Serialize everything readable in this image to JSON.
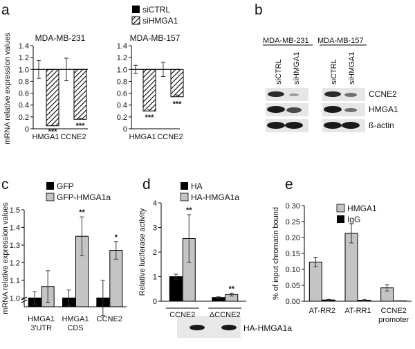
{
  "panel_letters": [
    "a",
    "b",
    "c",
    "d",
    "e"
  ],
  "colors": {
    "black": "#000000",
    "gray": "#c4c4c4",
    "hatch": "#000000",
    "error": "#444444",
    "blot_bg": "#e6e6e6",
    "blot_band": "#1a1a1a"
  },
  "panel_a": {
    "legend": [
      "siCTRL",
      "siHMGA1"
    ],
    "ylabel": "mRNA relative expression values"
  },
  "panel_b": {
    "cell_lines": [
      "MDA-MB-231",
      "MDA-MB-157"
    ],
    "lanes": [
      "siCTRL",
      "siHMGA1",
      "siCTRL",
      "siHMGA1"
    ],
    "proteins": [
      "CCNE2",
      "HMGA1",
      "ß-actin"
    ]
  },
  "panel_c": {
    "legend": [
      "GFP",
      "GFP-HMGA1a"
    ]
  },
  "panel_d": {
    "legend": [
      "HA",
      "HA-HMGA1a"
    ],
    "blot_label": "HA-HMGA1a"
  },
  "panel_e": {
    "legend": [
      "HMGA1",
      "IgG"
    ]
  },
  "chart_data": [
    {
      "panel": "a",
      "type": "bar",
      "title": "MDA-MB-231",
      "ylabel": "mRNA relative expression values",
      "categories": [
        "HMGA1",
        "CCNE2"
      ],
      "ylim": [
        0,
        1.4
      ],
      "yticks": [
        "0",
        "0.2",
        "0.4",
        "0.6",
        "0.8",
        "1.0",
        "1.2",
        "1.4"
      ],
      "baseline": 1.0,
      "series": [
        {
          "name": "siCTRL",
          "values": [
            1.0,
            1.0
          ],
          "errors": [
            0.15,
            0.19
          ]
        },
        {
          "name": "siHMGA1",
          "values": [
            0.05,
            0.16
          ],
          "errors": [
            0.01,
            0.02
          ],
          "annotations": [
            "***",
            "***"
          ]
        }
      ]
    },
    {
      "panel": "a",
      "type": "bar",
      "title": "MDA-MB-157",
      "categories": [
        "HMGA1",
        "CCNE2"
      ],
      "ylim": [
        0,
        1.4
      ],
      "yticks": [
        "0",
        "0.2",
        "0.4",
        "0.6",
        "0.8",
        "1.0",
        "1.2",
        "1.4"
      ],
      "baseline": 1.0,
      "series": [
        {
          "name": "siCTRL",
          "values": [
            1.0,
            1.0
          ],
          "errors": [
            0.07,
            0.12
          ]
        },
        {
          "name": "siHMGA1",
          "values": [
            0.3,
            0.54
          ],
          "errors": [
            0.02,
            0.03
          ],
          "annotations": [
            "***",
            "***"
          ]
        }
      ]
    },
    {
      "panel": "c",
      "type": "bar",
      "ylabel": "mRNA relative expression values",
      "categories": [
        "HMGA1\n3'UTR",
        "HMGA1\nCDS",
        "CCNE2"
      ],
      "ylim": [
        0.95,
        1.5
      ],
      "ybreak": true,
      "yticks": [
        "1.0",
        "1.1",
        "1.2",
        "1.3",
        "1.4",
        "1.5"
      ],
      "series": [
        {
          "name": "GFP",
          "values": [
            1.0,
            1.0,
            1.0
          ],
          "errors": [
            0.035,
            0.045,
            0.1
          ]
        },
        {
          "name": "GFP-HMGA1a",
          "values": [
            1.065,
            1.35,
            1.27
          ],
          "errors": [
            0.09,
            0.11,
            0.05
          ],
          "annotations": [
            "",
            "**",
            "*"
          ]
        }
      ]
    },
    {
      "panel": "d",
      "type": "bar",
      "ylabel": "Relative luciferase activity",
      "categories": [
        "CCNE2",
        "ΔCCNE2"
      ],
      "ylim": [
        0,
        4
      ],
      "yticks": [
        "0",
        "1",
        "2",
        "3",
        "4"
      ],
      "series": [
        {
          "name": "HA",
          "values": [
            1.0,
            0.15
          ],
          "errors": [
            0.1,
            0.03
          ]
        },
        {
          "name": "HA-HMGA1a",
          "values": [
            2.55,
            0.27
          ],
          "errors": [
            0.97,
            0.06
          ],
          "annotations": [
            "**",
            "**"
          ]
        }
      ]
    },
    {
      "panel": "e",
      "type": "bar",
      "ylabel": "% of input chromatin bound",
      "categories": [
        "AT-RR2",
        "AT-RR1",
        "CCNE2\npromoter"
      ],
      "ylim": [
        0,
        0.3
      ],
      "yticks": [
        "0.00",
        "0.05",
        "0.10",
        "0.15",
        "0.20",
        "0.25",
        "0.30"
      ],
      "series": [
        {
          "name": "HMGA1",
          "values": [
            0.123,
            0.213,
            0.042
          ],
          "errors": [
            0.015,
            0.03,
            0.01
          ]
        },
        {
          "name": "IgG",
          "values": [
            0.004,
            0.003,
            0.001
          ],
          "errors": [
            0.002,
            0.002,
            0.001
          ]
        }
      ]
    }
  ]
}
